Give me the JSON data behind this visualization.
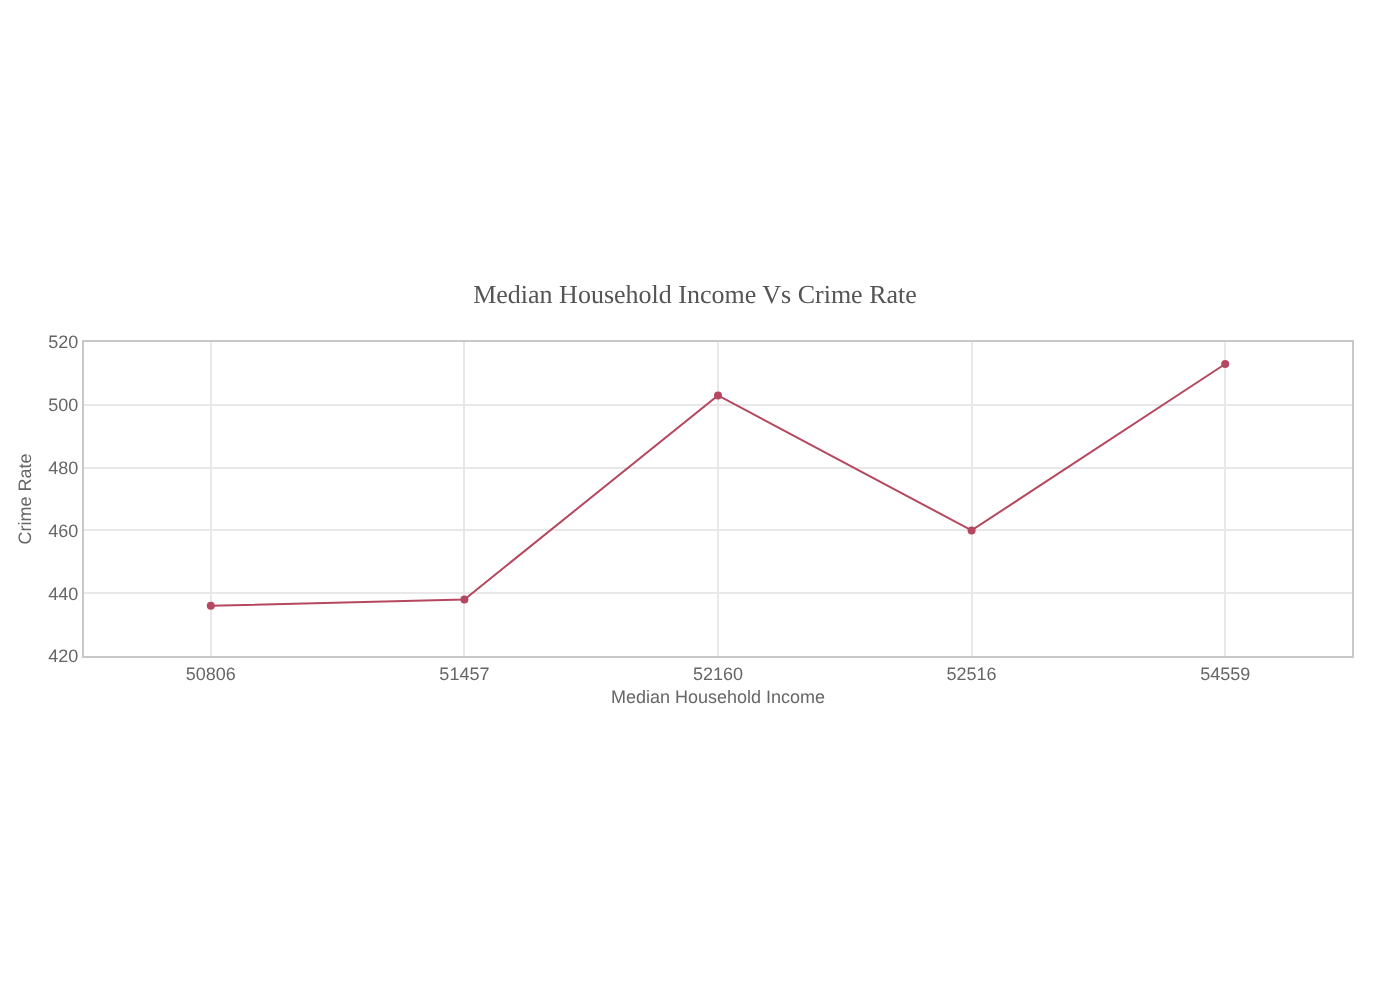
{
  "chart_data": {
    "type": "line",
    "title": "Median Household Income Vs Crime Rate",
    "xlabel": "Median Household Income",
    "ylabel": "Crime Rate",
    "categories": [
      "50806",
      "51457",
      "52160",
      "52516",
      "54559"
    ],
    "series": [
      {
        "color": "#b5485f",
        "values": [
          436,
          438,
          503,
          460,
          513
        ]
      }
    ],
    "ylim": [
      420,
      520
    ],
    "yticks": [
      420,
      440,
      460,
      480,
      500,
      520
    ],
    "grid": true,
    "marker": "circle",
    "line_style": "solid"
  }
}
